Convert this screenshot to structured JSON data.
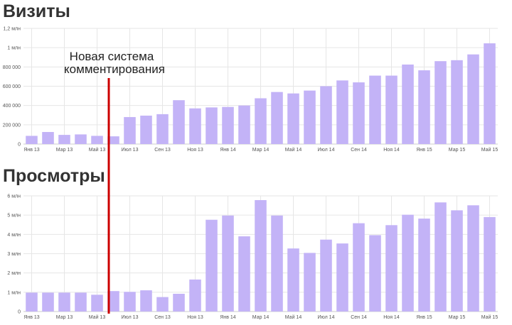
{
  "chart_data": [
    {
      "type": "bar",
      "title": "Визиты",
      "xlabel": "",
      "ylabel": "",
      "grid": true,
      "bar_color": "#c3b3f7",
      "ylim": [
        0,
        1200000
      ],
      "ytick_values": [
        0,
        200000,
        400000,
        600000,
        800000,
        1000000,
        1200000
      ],
      "ytick_labels": [
        "0",
        "200 000",
        "400 000",
        "600 000",
        "800 000",
        "1 млн",
        "1,2 млн"
      ],
      "xtick_labels": [
        {
          "index": 0,
          "label": "Янв 13"
        },
        {
          "index": 2,
          "label": "Мар 13"
        },
        {
          "index": 4,
          "label": "Май 13"
        },
        {
          "index": 6,
          "label": "Июл 13"
        },
        {
          "index": 8,
          "label": "Сен 13"
        },
        {
          "index": 10,
          "label": "Ноя 13"
        },
        {
          "index": 12,
          "label": "Янв 14"
        },
        {
          "index": 14,
          "label": "Мар 14"
        },
        {
          "index": 16,
          "label": "Май 14"
        },
        {
          "index": 18,
          "label": "Июл 14"
        },
        {
          "index": 20,
          "label": "Сен 14"
        },
        {
          "index": 22,
          "label": "Ноя 14"
        },
        {
          "index": 24,
          "label": "Янв 15"
        },
        {
          "index": 26,
          "label": "Мар 15"
        },
        {
          "index": 28,
          "label": "Май 15"
        }
      ],
      "values": [
        85000,
        125000,
        95000,
        100000,
        85000,
        80000,
        280000,
        295000,
        310000,
        455000,
        370000,
        380000,
        385000,
        400000,
        475000,
        540000,
        525000,
        555000,
        600000,
        660000,
        640000,
        710000,
        710000,
        825000,
        765000,
        860000,
        870000,
        930000,
        1045000
      ]
    },
    {
      "type": "bar",
      "title": "Просмотры",
      "xlabel": "",
      "ylabel": "",
      "grid": true,
      "bar_color": "#c3b3f7",
      "ylim": [
        0,
        6000000
      ],
      "ytick_values": [
        0,
        1000000,
        2000000,
        3000000,
        4000000,
        5000000,
        6000000
      ],
      "ytick_labels": [
        "0",
        "1 млн",
        "2 млн",
        "3 млн",
        "4 млн",
        "5 млн",
        "6 млн"
      ],
      "xtick_labels": [
        {
          "index": 0,
          "label": "Янв 13"
        },
        {
          "index": 2,
          "label": "Мар 13"
        },
        {
          "index": 4,
          "label": "Май 13"
        },
        {
          "index": 6,
          "label": "Июл 13"
        },
        {
          "index": 8,
          "label": "Сен 13"
        },
        {
          "index": 10,
          "label": "Ноя 13"
        },
        {
          "index": 12,
          "label": "Янв 14"
        },
        {
          "index": 14,
          "label": "Мар 14"
        },
        {
          "index": 16,
          "label": "Май 14"
        },
        {
          "index": 18,
          "label": "Июл 14"
        },
        {
          "index": 20,
          "label": "Сен 14"
        },
        {
          "index": 22,
          "label": "Ноя 14"
        },
        {
          "index": 24,
          "label": "Янв 15"
        },
        {
          "index": 26,
          "label": "Мар 15"
        },
        {
          "index": 28,
          "label": "Май 15"
        }
      ],
      "values": [
        980000,
        980000,
        980000,
        980000,
        870000,
        1060000,
        1020000,
        1100000,
        750000,
        920000,
        1660000,
        4760000,
        4980000,
        3900000,
        5780000,
        4980000,
        3270000,
        3040000,
        3730000,
        3530000,
        4580000,
        3960000,
        4480000,
        5020000,
        4820000,
        5660000,
        5250000,
        5510000,
        4900000
      ]
    }
  ],
  "annotation": {
    "lines": [
      "Новая система",
      "комментирования"
    ],
    "line_color": "#cc0000",
    "after_index": 4
  }
}
